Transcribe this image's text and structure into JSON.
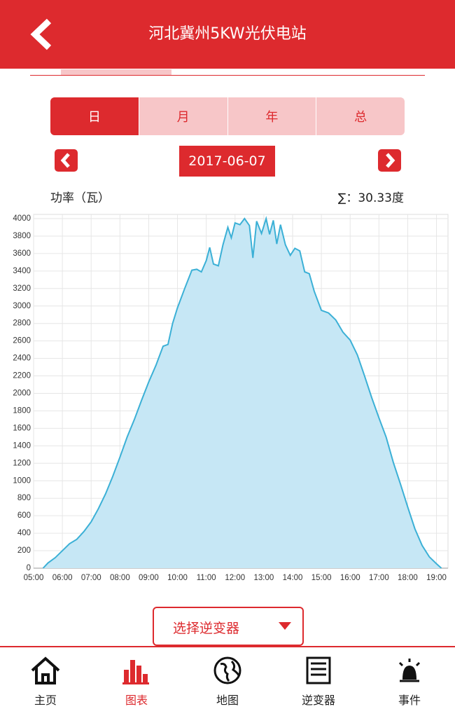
{
  "header": {
    "title": "河北冀州5KW光伏电站"
  },
  "tabs": [
    "日",
    "月",
    "年",
    "总"
  ],
  "date": "2017-06-07",
  "power_label": "功率（瓦）",
  "total": "∑：30.33度",
  "chart_data": {
    "type": "area",
    "color": "#3bb0d6",
    "fill": "#c6e7f5",
    "grid": true,
    "x": [
      5.33,
      5.5,
      5.75,
      6,
      6.25,
      6.5,
      6.75,
      7,
      7.25,
      7.5,
      7.75,
      8,
      8.25,
      8.5,
      8.75,
      9,
      9.25,
      9.5,
      9.67,
      9.83,
      10,
      10.25,
      10.5,
      10.67,
      10.83,
      11,
      11.12,
      11.25,
      11.42,
      11.58,
      11.75,
      11.87,
      12,
      12.17,
      12.33,
      12.5,
      12.62,
      12.75,
      12.92,
      13.08,
      13.2,
      13.33,
      13.45,
      13.58,
      13.75,
      13.92,
      14.08,
      14.25,
      14.42,
      14.58,
      14.75,
      15,
      15.25,
      15.5,
      15.75,
      16,
      16.25,
      16.5,
      16.75,
      17,
      17.25,
      17.5,
      17.75,
      18,
      18.25,
      18.5,
      18.75,
      19,
      19.17
    ],
    "values": [
      0,
      60,
      120,
      200,
      280,
      330,
      420,
      530,
      680,
      850,
      1050,
      1270,
      1500,
      1700,
      1920,
      2130,
      2320,
      2540,
      2560,
      2800,
      2980,
      3200,
      3410,
      3420,
      3390,
      3520,
      3670,
      3480,
      3460,
      3700,
      3900,
      3780,
      3950,
      3930,
      4000,
      3920,
      3550,
      3970,
      3830,
      4000,
      3820,
      3980,
      3710,
      3930,
      3700,
      3580,
      3660,
      3630,
      3390,
      3370,
      3170,
      2950,
      2920,
      2840,
      2700,
      2610,
      2440,
      2200,
      1950,
      1720,
      1500,
      1210,
      960,
      700,
      450,
      260,
      130,
      50,
      0
    ],
    "xlim": [
      5,
      19.4
    ],
    "ylim": [
      0,
      4000
    ],
    "xticks": [
      {
        "value": 5,
        "label": "05:00"
      },
      {
        "value": 6,
        "label": "06:00"
      },
      {
        "value": 7,
        "label": "07:00"
      },
      {
        "value": 8,
        "label": "08:00"
      },
      {
        "value": 9,
        "label": "09:00"
      },
      {
        "value": 10,
        "label": "10:00"
      },
      {
        "value": 11,
        "label": "11:00"
      },
      {
        "value": 12,
        "label": "12:00"
      },
      {
        "value": 13,
        "label": "13:00"
      },
      {
        "value": 14,
        "label": "14:00"
      },
      {
        "value": 15,
        "label": "15:00"
      },
      {
        "value": 16,
        "label": "16:00"
      },
      {
        "value": 17,
        "label": "17:00"
      },
      {
        "value": 18,
        "label": "18:00"
      },
      {
        "value": 19,
        "label": "19:00"
      }
    ],
    "yticks": [
      0,
      200,
      400,
      600,
      800,
      1000,
      1200,
      1400,
      1600,
      1800,
      2000,
      2200,
      2400,
      2600,
      2800,
      3000,
      3200,
      3400,
      3600,
      3800,
      4000
    ]
  },
  "selector": "选择逆变器",
  "nav": [
    "主页",
    "图表",
    "地图",
    "逆变器",
    "事件"
  ]
}
